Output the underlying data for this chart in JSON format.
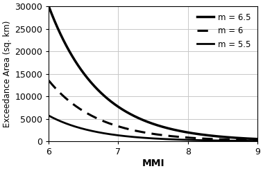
{
  "title": "",
  "xlabel": "MMI",
  "ylabel": "Exceedance Area (sq. km)",
  "xlim": [
    6,
    9
  ],
  "ylim": [
    0,
    30000
  ],
  "xticks": [
    6,
    7,
    8,
    9
  ],
  "yticks": [
    0,
    5000,
    10000,
    15000,
    20000,
    25000,
    30000
  ],
  "legend_entries": [
    {
      "label": "m = 6.5",
      "linestyle": "solid",
      "linewidth": 2.5
    },
    {
      "label": "m = 6",
      "linestyle": "dashed",
      "linewidth": 2.2
    },
    {
      "label": "m = 5.5",
      "linestyle": "solid",
      "linewidth": 2.0
    }
  ],
  "curves": {
    "m65": {
      "val_at_6": 30000,
      "val_at_9": 500
    },
    "m6": {
      "val_at_6": 13500,
      "val_at_9": 200
    },
    "m55": {
      "val_at_6": 5700,
      "val_at_9": 70
    }
  },
  "line_color": "#000000",
  "background_color": "#ffffff",
  "grid_color": "#c8c8c8"
}
